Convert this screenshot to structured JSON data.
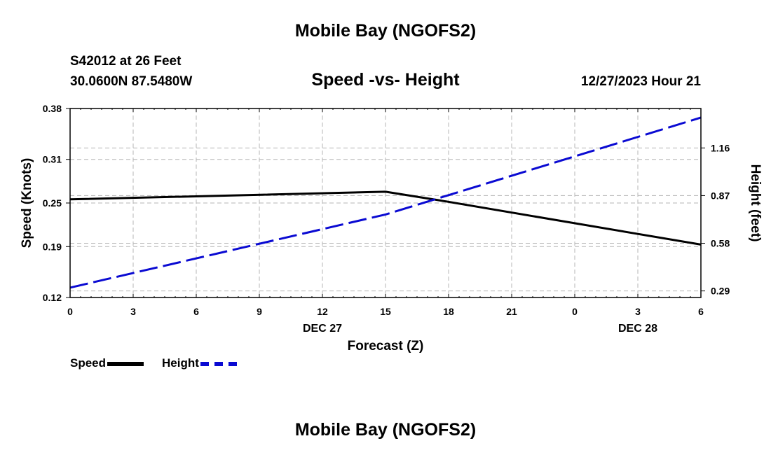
{
  "header": {
    "title": "Mobile Bay (NGOFS2)",
    "station": "S42012 at 26 Feet",
    "coordinates": "30.0600N  87.5480W",
    "subtitle": "Speed -vs- Height",
    "datetime": "12/27/2023 Hour 21"
  },
  "footer": {
    "title": "Mobile Bay (NGOFS2)"
  },
  "legend": {
    "speed_label": "Speed",
    "height_label": "Height"
  },
  "colors": {
    "speed": "#000000",
    "height": "#0a0ad2",
    "grid": "#b4b4b4"
  },
  "chart_data": {
    "type": "line",
    "title": "Speed -vs- Height",
    "xlabel": "Forecast (Z)",
    "ylabel": "Speed (Knots)",
    "y2label": "Height (feet)",
    "x": [
      0,
      3,
      6,
      9,
      12,
      15,
      18,
      21,
      24,
      27,
      30
    ],
    "x_tick_labels": [
      "0",
      "3",
      "6",
      "9",
      "12",
      "15",
      "18",
      "21",
      "0",
      "3",
      "6"
    ],
    "date_labels": [
      {
        "x": 12,
        "label": "DEC 27"
      },
      {
        "x": 27,
        "label": "DEC 28"
      }
    ],
    "xlim": [
      0,
      30
    ],
    "ylim": [
      0.12,
      0.38
    ],
    "y_ticks": [
      0.12,
      0.19,
      0.25,
      0.31,
      0.38
    ],
    "y_tick_labels": [
      "0.12",
      "0.19",
      "0.25",
      "0.31",
      "0.38"
    ],
    "y2lim": [
      0.25,
      1.4
    ],
    "y2_ticks": [
      0.29,
      0.58,
      0.87,
      1.16
    ],
    "y2_tick_labels": [
      "0.29",
      "0.58",
      "0.87",
      "1.16"
    ],
    "grid": true,
    "series": [
      {
        "name": "Speed",
        "axis": "left",
        "style": "solid",
        "x": [
          0,
          15,
          17.5,
          30
        ],
        "values": [
          0.255,
          0.2655,
          0.254,
          0.1928
        ]
      },
      {
        "name": "Height",
        "axis": "right",
        "style": "dashed",
        "x": [
          0,
          15,
          30
        ],
        "values": [
          0.31,
          0.755,
          1.345
        ]
      }
    ]
  }
}
